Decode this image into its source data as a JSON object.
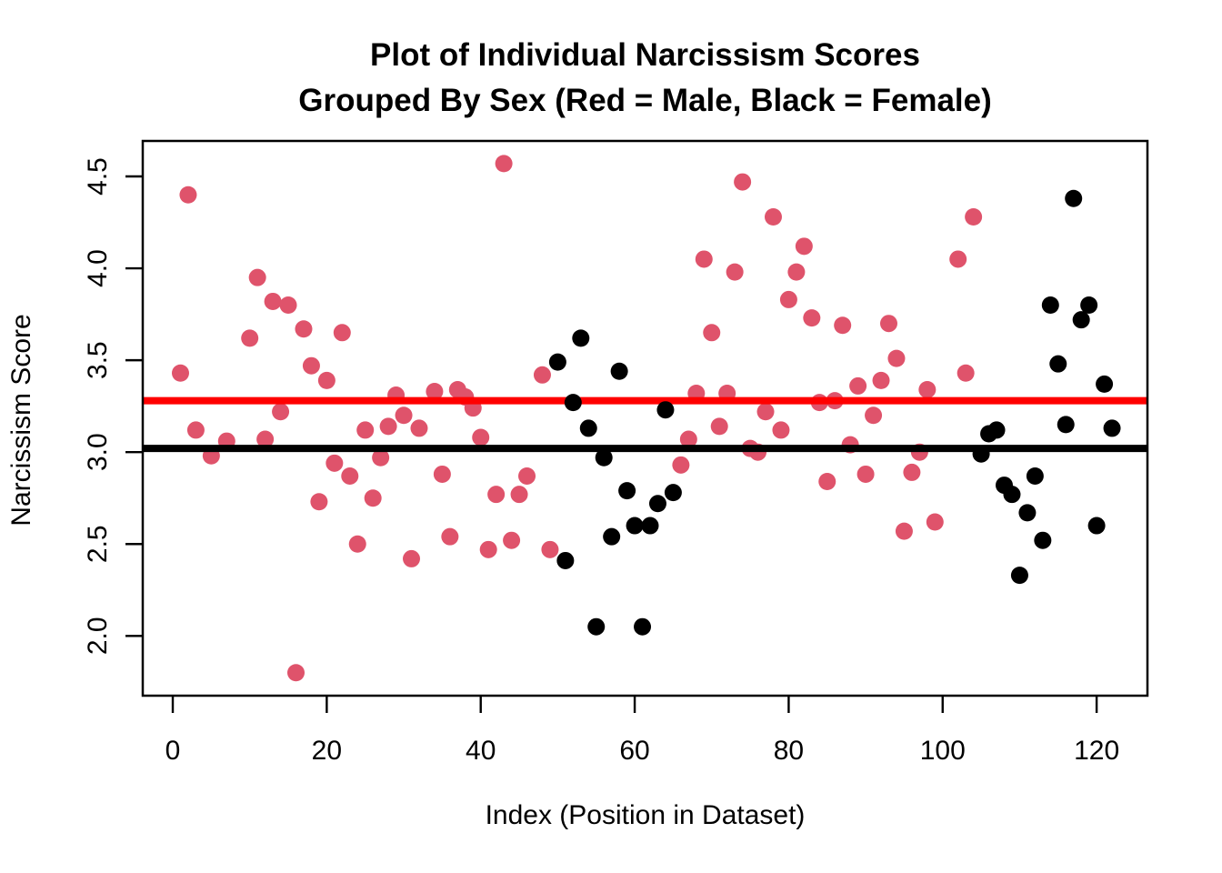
{
  "page": {
    "background_color": "#ffffff"
  },
  "chart_data": {
    "type": "scatter",
    "title_line1": "Plot of Individual Narcissism Scores",
    "title_line2": "Grouped By Sex (Red = Male, Black = Female)",
    "xlabel": "Index (Position in Dataset)",
    "ylabel": "Narcissism Score",
    "x_tick_labels": [
      "0",
      "20",
      "40",
      "60",
      "80",
      "100",
      "120"
    ],
    "x_tick_values": [
      0,
      20,
      40,
      60,
      80,
      100,
      120
    ],
    "y_tick_labels": [
      "2.0",
      "2.5",
      "3.0",
      "3.5",
      "4.0",
      "4.5"
    ],
    "y_tick_values": [
      2.0,
      2.5,
      3.0,
      3.5,
      4.0,
      4.5
    ],
    "xlim": [
      -3.9,
      126.6
    ],
    "ylim": [
      1.675,
      4.693
    ],
    "grid": false,
    "legend_position": "none",
    "colors": {
      "male_point": "#DF536B",
      "female_point": "#000000",
      "male_mean_line": "#FF0000",
      "female_mean_line": "#000000",
      "axis": "#000000"
    },
    "series": [
      {
        "name": "Male",
        "color": "#DF536B",
        "points": [
          [
            1,
            3.43
          ],
          [
            2,
            4.4
          ],
          [
            3,
            3.12
          ],
          [
            5,
            2.98
          ],
          [
            7,
            3.06
          ],
          [
            10,
            3.62
          ],
          [
            11,
            3.95
          ],
          [
            12,
            3.07
          ],
          [
            13,
            3.82
          ],
          [
            14,
            3.22
          ],
          [
            15,
            3.8
          ],
          [
            16,
            1.8
          ],
          [
            17,
            3.67
          ],
          [
            18,
            3.47
          ],
          [
            19,
            2.73
          ],
          [
            20,
            3.39
          ],
          [
            21,
            2.94
          ],
          [
            22,
            3.65
          ],
          [
            23,
            2.87
          ],
          [
            24,
            2.5
          ],
          [
            25,
            3.12
          ],
          [
            26,
            2.75
          ],
          [
            27,
            2.97
          ],
          [
            28,
            3.14
          ],
          [
            29,
            3.31
          ],
          [
            30,
            3.2
          ],
          [
            31,
            2.42
          ],
          [
            32,
            3.13
          ],
          [
            34,
            3.33
          ],
          [
            35,
            2.88
          ],
          [
            36,
            2.54
          ],
          [
            37,
            3.34
          ],
          [
            38,
            3.3
          ],
          [
            39,
            3.24
          ],
          [
            40,
            3.08
          ],
          [
            41,
            2.47
          ],
          [
            42,
            2.77
          ],
          [
            43,
            4.57
          ],
          [
            44,
            2.52
          ],
          [
            45,
            2.77
          ],
          [
            46,
            2.87
          ],
          [
            48,
            3.42
          ],
          [
            49,
            2.47
          ],
          [
            66,
            2.93
          ],
          [
            67,
            3.07
          ],
          [
            68,
            3.32
          ],
          [
            69,
            4.05
          ],
          [
            70,
            3.65
          ],
          [
            71,
            3.14
          ],
          [
            72,
            3.32
          ],
          [
            73,
            3.98
          ],
          [
            74,
            4.47
          ],
          [
            75,
            3.02
          ],
          [
            76,
            3.0
          ],
          [
            77,
            3.22
          ],
          [
            78,
            4.28
          ],
          [
            79,
            3.12
          ],
          [
            80,
            3.83
          ],
          [
            81,
            3.98
          ],
          [
            82,
            4.12
          ],
          [
            83,
            3.73
          ],
          [
            84,
            3.27
          ],
          [
            85,
            2.84
          ],
          [
            86,
            3.28
          ],
          [
            87,
            3.69
          ],
          [
            88,
            3.04
          ],
          [
            89,
            3.36
          ],
          [
            90,
            2.88
          ],
          [
            91,
            3.2
          ],
          [
            92,
            3.39
          ],
          [
            93,
            3.7
          ],
          [
            94,
            3.51
          ],
          [
            95,
            2.57
          ],
          [
            96,
            2.89
          ],
          [
            97,
            3.0
          ],
          [
            98,
            3.34
          ],
          [
            99,
            2.62
          ],
          [
            102,
            4.05
          ],
          [
            103,
            3.43
          ],
          [
            104,
            4.28
          ]
        ]
      },
      {
        "name": "Female",
        "color": "#000000",
        "points": [
          [
            50,
            3.49
          ],
          [
            51,
            2.41
          ],
          [
            52,
            3.27
          ],
          [
            53,
            3.62
          ],
          [
            54,
            3.13
          ],
          [
            55,
            2.05
          ],
          [
            56,
            2.97
          ],
          [
            57,
            2.54
          ],
          [
            58,
            3.44
          ],
          [
            59,
            2.79
          ],
          [
            60,
            2.6
          ],
          [
            61,
            2.05
          ],
          [
            62,
            2.6
          ],
          [
            63,
            2.72
          ],
          [
            64,
            3.23
          ],
          [
            65,
            2.78
          ],
          [
            105,
            2.99
          ],
          [
            106,
            3.1
          ],
          [
            107,
            3.12
          ],
          [
            108,
            2.82
          ],
          [
            109,
            2.77
          ],
          [
            110,
            2.33
          ],
          [
            111,
            2.67
          ],
          [
            112,
            2.87
          ],
          [
            113,
            2.52
          ],
          [
            114,
            3.8
          ],
          [
            115,
            3.48
          ],
          [
            116,
            3.15
          ],
          [
            117,
            4.38
          ],
          [
            118,
            3.72
          ],
          [
            119,
            3.8
          ],
          [
            120,
            2.6
          ],
          [
            121,
            3.37
          ],
          [
            122,
            3.13
          ]
        ]
      }
    ],
    "mean_lines": [
      {
        "name": "male-mean-line",
        "color": "#FF0000",
        "value": 3.28
      },
      {
        "name": "female-mean-line",
        "color": "#000000",
        "value": 3.02
      }
    ]
  }
}
